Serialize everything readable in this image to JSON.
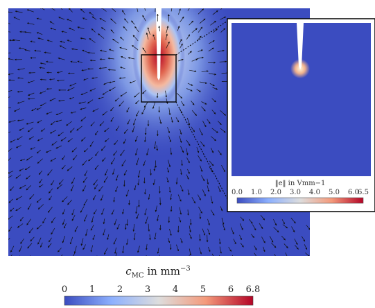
{
  "main_plot": {
    "colorbar": {
      "label_var": "c",
      "label_sub": "MC",
      "label_unit": " in mm",
      "label_exp": "−3",
      "ticks": [
        "0",
        "1",
        "2",
        "3",
        "4",
        "5",
        "6",
        "6.8"
      ],
      "min": 0,
      "max": 6.8
    }
  },
  "inset": {
    "colorbar": {
      "label": "‖e‖ in Vmm−1",
      "ticks": [
        "0.0",
        "1.0",
        "2.0",
        "3.0",
        "4.0",
        "5.0",
        "6.0",
        "6.5"
      ],
      "min": 0,
      "max": 6.5
    }
  },
  "colors": {
    "field_background": "#3b4cc0",
    "colormap_low": "#3b4cc0",
    "colormap_mid": "#dddddd",
    "colormap_high": "#b40426"
  }
}
